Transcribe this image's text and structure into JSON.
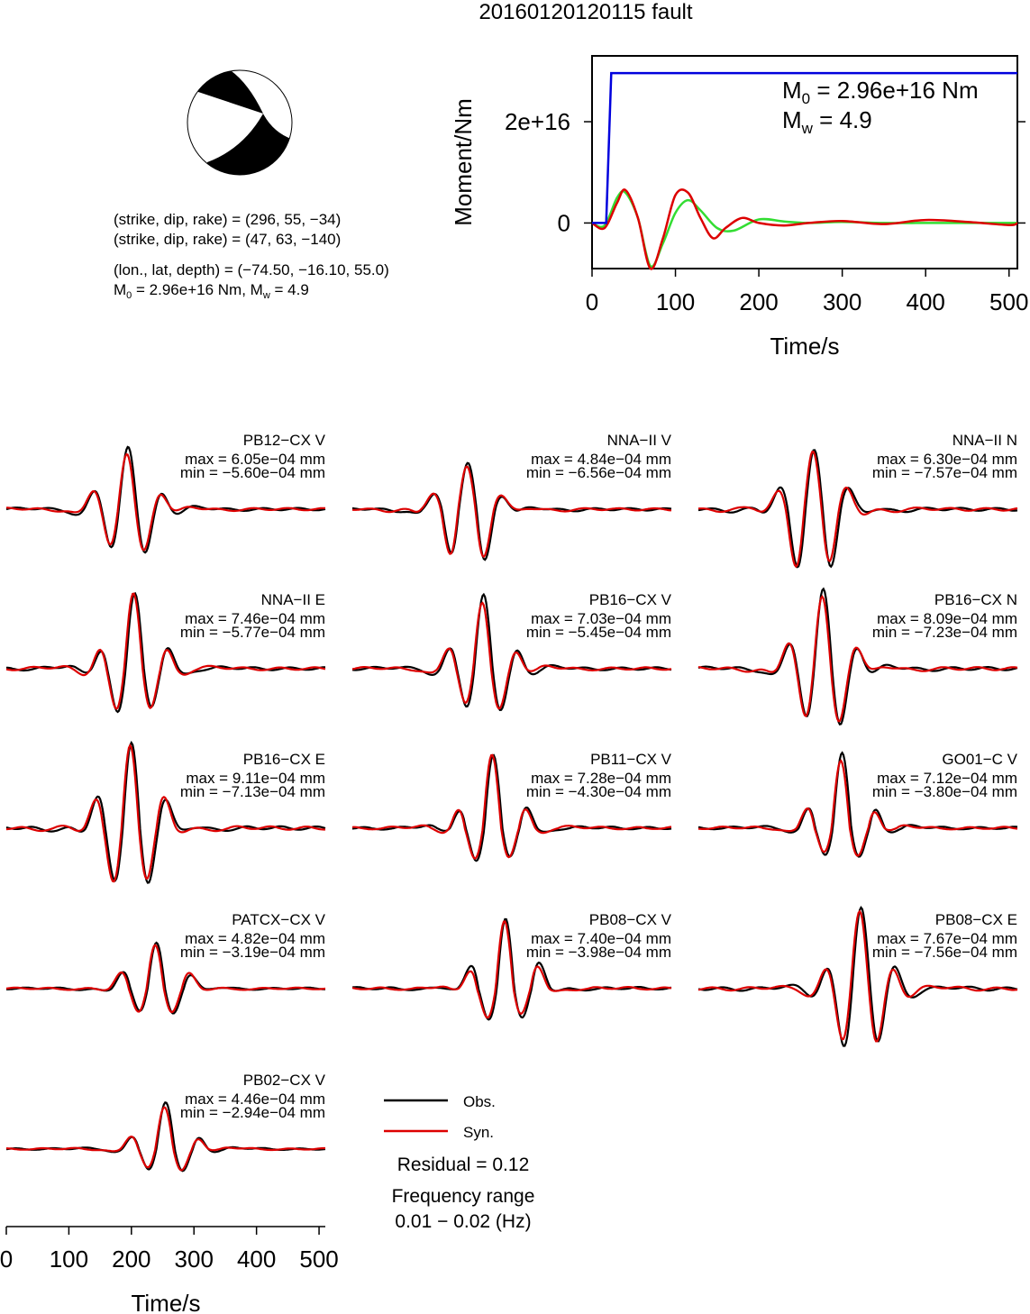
{
  "title": "20160120120115 fault",
  "beachball": {
    "plane1": "(strike, dip, rake) = (296, 55, −34)",
    "plane2": "(strike, dip, rake) = (47, 63, −140)",
    "location": "(lon., lat, depth) = (−74.50, −16.10, 55.0)",
    "m0_prefix": "M",
    "m0_sub": "0",
    "m0_text": " = 2.96e+16 Nm, M",
    "mw_sub": "w",
    "mw_text": " = 4.9"
  },
  "moment_panel": {
    "ylabel": "Moment/Nm",
    "xlabel": "Time/s",
    "m0_label": "M",
    "m0_sub": "0",
    "m0_value": " = 2.96e+16 Nm",
    "mw_label": "M",
    "mw_sub": "w",
    "mw_value": " = 4.9",
    "ytick_labels": [
      "0",
      "2e+16"
    ],
    "xtick_labels": [
      "0",
      "100",
      "200",
      "300",
      "400",
      "500"
    ]
  },
  "chart_data": [
    {
      "type": "line",
      "title": "",
      "xlabel": "Time/s",
      "ylabel": "Moment/Nm",
      "xlim": [
        0,
        510
      ],
      "ylim": [
        -9000000000000000.0,
        3.3e+16
      ],
      "yticks": [
        0,
        2e+16
      ],
      "xticks": [
        0,
        100,
        200,
        300,
        400,
        500
      ],
      "series": [
        {
          "color": "#0000dd",
          "x": [
            0,
            17,
            23,
            510
          ],
          "y": [
            0,
            0,
            2.96e+16,
            2.96e+16
          ]
        },
        {
          "color": "#33dd33",
          "x": [
            0,
            15,
            30,
            40,
            55,
            70,
            85,
            100,
            115,
            130,
            150,
            170,
            200,
            230,
            260,
            300,
            350,
            400,
            450,
            510
          ],
          "y": [
            0,
            -500000000000000.0,
            5000000000000000.0,
            6000000000000000.0,
            1000000000000000.0,
            -8500000000000000.0,
            -4000000000000000.0,
            2000000000000000.0,
            4500000000000000.0,
            2500000000000000.0,
            -1000000000000000.0,
            -1500000000000000.0,
            700000000000000.0,
            300000000000000.0,
            0,
            200000000000000.0,
            0,
            0,
            0,
            0
          ]
        },
        {
          "color": "#dd0000",
          "x": [
            0,
            15,
            30,
            40,
            55,
            70,
            85,
            100,
            115,
            130,
            145,
            160,
            180,
            200,
            230,
            260,
            300,
            350,
            400,
            450,
            500,
            510
          ],
          "y": [
            0,
            -1000000000000000.0,
            4000000000000000.0,
            6500000000000000.0,
            1000000000000000.0,
            -9000000000000000.0,
            -3000000000000000.0,
            5500000000000000.0,
            6000000000000000.0,
            1000000000000000.0,
            -3000000000000000.0,
            -1000000000000000.0,
            1000000000000000.0,
            0,
            -500000000000000.0,
            0,
            400000000000000.0,
            -200000000000000.0,
            600000000000000.0,
            200000000000000.0,
            -400000000000000.0,
            0
          ]
        }
      ]
    },
    {
      "type": "line",
      "title": "Waveform fits",
      "xlabel": "Time/s",
      "xlim": [
        0,
        510
      ],
      "xticks": [
        0,
        100,
        200,
        300,
        400,
        500
      ],
      "legend": [
        {
          "name": "Obs.",
          "color": "#000000"
        },
        {
          "name": "Syn.",
          "color": "#dd0000"
        }
      ],
      "residual": "Residual = 0.12",
      "frequency_range": [
        "Frequency range",
        "0.01 − 0.02 (Hz)"
      ],
      "stations": [
        {
          "name": "PB12−CX V",
          "max": "max = 6.05e−04 mm",
          "min": "min = −5.60e−04 mm",
          "center": 195,
          "amp_pos": 6.05,
          "amp_neg": 5.6
        },
        {
          "name": "NNA−II V",
          "max": "max = 4.84e−04 mm",
          "min": "min = −6.56e−04 mm",
          "center": 185,
          "amp_pos": 4.84,
          "amp_neg": 6.56
        },
        {
          "name": "NNA−II N",
          "max": "max = 6.30e−04 mm",
          "min": "min = −7.57e−04 mm",
          "center": 185,
          "amp_pos": 6.3,
          "amp_neg": 7.57
        },
        {
          "name": "NNA−II E",
          "max": "max = 7.46e−04 mm",
          "min": "min = −5.77e−04 mm",
          "center": 205,
          "amp_pos": 7.46,
          "amp_neg": 5.77
        },
        {
          "name": "PB16−CX V",
          "max": "max = 7.03e−04 mm",
          "min": "min = −5.45e−04 mm",
          "center": 210,
          "amp_pos": 7.03,
          "amp_neg": 5.45
        },
        {
          "name": "PB16−CX N",
          "max": "max = 8.09e−04 mm",
          "min": "min = −7.23e−04 mm",
          "center": 200,
          "amp_pos": 8.09,
          "amp_neg": 7.23
        },
        {
          "name": "PB16−CX E",
          "max": "max = 9.11e−04 mm",
          "min": "min = −7.13e−04 mm",
          "center": 200,
          "amp_pos": 9.11,
          "amp_neg": 7.13
        },
        {
          "name": "PB11−CX V",
          "max": "max = 7.28e−04 mm",
          "min": "min = −4.30e−04 mm",
          "center": 225,
          "amp_pos": 7.28,
          "amp_neg": 4.3
        },
        {
          "name": "GO01−C V",
          "max": "max = 7.12e−04 mm",
          "min": "min = −3.80e−04 mm",
          "center": 230,
          "amp_pos": 7.12,
          "amp_neg": 3.8
        },
        {
          "name": "PATCX−CX V",
          "max": "max = 4.82e−04 mm",
          "min": "min = −3.19e−04 mm",
          "center": 240,
          "amp_pos": 4.82,
          "amp_neg": 3.19
        },
        {
          "name": "PB08−CX V",
          "max": "max = 7.40e−04 mm",
          "min": "min = −3.98e−04 mm",
          "center": 245,
          "amp_pos": 7.4,
          "amp_neg": 3.98
        },
        {
          "name": "PB08−CX E",
          "max": "max = 7.67e−04 mm",
          "min": "min = −7.56e−04 mm",
          "center": 260,
          "amp_pos": 7.67,
          "amp_neg": 7.56
        },
        {
          "name": "PB02−CX V",
          "max": "max = 4.46e−04 mm",
          "min": "min = −2.94e−04 mm",
          "center": 255,
          "amp_pos": 4.46,
          "amp_neg": 2.94
        }
      ]
    }
  ]
}
